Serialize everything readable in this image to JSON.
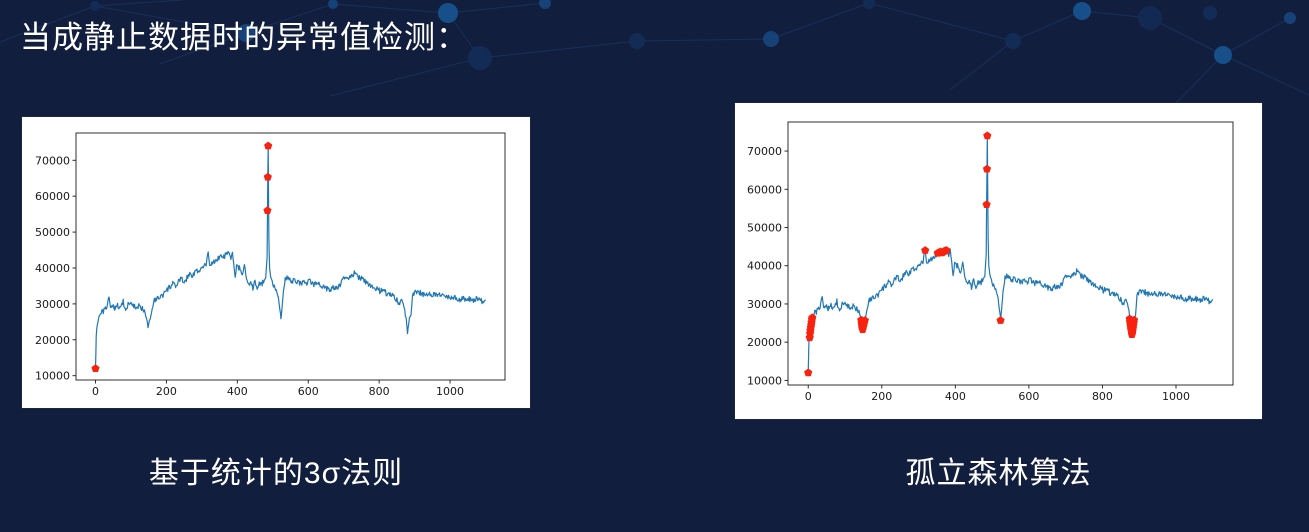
{
  "page": {
    "title": "当成静止数据时的异常值检测：",
    "background_color": "#121e3e",
    "text_color": "#ffffff"
  },
  "chart_data": {
    "type": "line",
    "x_ticks": [
      0,
      200,
      400,
      600,
      800,
      1000
    ],
    "y_ticks": [
      10000,
      20000,
      30000,
      40000,
      50000,
      60000,
      70000
    ],
    "xlim": [
      -55,
      1155
    ],
    "ylim": [
      8800,
      77600
    ],
    "panel_background": "#ffffff",
    "line_color": "#1f77b4",
    "anomaly_color": "#f8220e",
    "anomaly_marker": "pentagon",
    "axis_color": "#1a1a1a",
    "noise_amplitude": 1500,
    "series_keypoints": [
      [
        0,
        12000
      ],
      [
        1,
        16500
      ],
      [
        2,
        21000
      ],
      [
        4,
        23500
      ],
      [
        6,
        24500
      ],
      [
        8,
        25500
      ],
      [
        10,
        26500
      ],
      [
        14,
        27200
      ],
      [
        20,
        27800
      ],
      [
        26,
        28300
      ],
      [
        32,
        29000
      ],
      [
        38,
        32300
      ],
      [
        42,
        28800
      ],
      [
        48,
        29300
      ],
      [
        55,
        28800
      ],
      [
        62,
        29500
      ],
      [
        70,
        29000
      ],
      [
        78,
        30600
      ],
      [
        85,
        28000
      ],
      [
        92,
        29800
      ],
      [
        100,
        30300
      ],
      [
        108,
        29600
      ],
      [
        115,
        28200
      ],
      [
        122,
        29300
      ],
      [
        130,
        28800
      ],
      [
        138,
        28300
      ],
      [
        144,
        26500
      ],
      [
        148,
        23600
      ],
      [
        152,
        25500
      ],
      [
        158,
        27500
      ],
      [
        164,
        30800
      ],
      [
        172,
        31400
      ],
      [
        180,
        31800
      ],
      [
        190,
        32500
      ],
      [
        200,
        33600
      ],
      [
        210,
        34800
      ],
      [
        218,
        35600
      ],
      [
        226,
        34700
      ],
      [
        234,
        36300
      ],
      [
        242,
        36900
      ],
      [
        250,
        36200
      ],
      [
        258,
        37200
      ],
      [
        266,
        38600
      ],
      [
        274,
        37800
      ],
      [
        282,
        39400
      ],
      [
        290,
        38800
      ],
      [
        298,
        39800
      ],
      [
        306,
        40300
      ],
      [
        312,
        41000
      ],
      [
        318,
        44000
      ],
      [
        322,
        40800
      ],
      [
        328,
        41300
      ],
      [
        336,
        41900
      ],
      [
        344,
        42300
      ],
      [
        352,
        43400
      ],
      [
        360,
        43100
      ],
      [
        368,
        43600
      ],
      [
        376,
        44000
      ],
      [
        382,
        42600
      ],
      [
        386,
        43900
      ],
      [
        390,
        41200
      ],
      [
        394,
        36700
      ],
      [
        398,
        40600
      ],
      [
        404,
        40100
      ],
      [
        410,
        39400
      ],
      [
        416,
        38000
      ],
      [
        420,
        41600
      ],
      [
        426,
        36400
      ],
      [
        432,
        35200
      ],
      [
        438,
        35800
      ],
      [
        444,
        34300
      ],
      [
        450,
        36400
      ],
      [
        456,
        34200
      ],
      [
        462,
        35900
      ],
      [
        468,
        35400
      ],
      [
        474,
        36300
      ],
      [
        480,
        37200
      ],
      [
        484,
        43000
      ],
      [
        485,
        56000
      ],
      [
        486,
        65300
      ],
      [
        487,
        74000
      ],
      [
        489,
        48000
      ],
      [
        491,
        40000
      ],
      [
        494,
        37600
      ],
      [
        498,
        36200
      ],
      [
        504,
        34600
      ],
      [
        510,
        33400
      ],
      [
        516,
        31200
      ],
      [
        520,
        28400
      ],
      [
        523,
        25700
      ],
      [
        526,
        28800
      ],
      [
        530,
        33500
      ],
      [
        535,
        36600
      ],
      [
        540,
        37600
      ],
      [
        546,
        36700
      ],
      [
        554,
        36100
      ],
      [
        562,
        36600
      ],
      [
        570,
        36200
      ],
      [
        578,
        35700
      ],
      [
        586,
        36200
      ],
      [
        594,
        35800
      ],
      [
        602,
        36300
      ],
      [
        612,
        35700
      ],
      [
        622,
        35300
      ],
      [
        632,
        35600
      ],
      [
        642,
        34900
      ],
      [
        652,
        34300
      ],
      [
        662,
        33900
      ],
      [
        672,
        34600
      ],
      [
        682,
        34200
      ],
      [
        690,
        35400
      ],
      [
        698,
        36700
      ],
      [
        706,
        37300
      ],
      [
        714,
        37100
      ],
      [
        722,
        37800
      ],
      [
        730,
        38600
      ],
      [
        738,
        37600
      ],
      [
        746,
        37200
      ],
      [
        754,
        36700
      ],
      [
        762,
        36100
      ],
      [
        770,
        35600
      ],
      [
        778,
        35100
      ],
      [
        786,
        34700
      ],
      [
        794,
        34300
      ],
      [
        802,
        33600
      ],
      [
        810,
        34100
      ],
      [
        818,
        33200
      ],
      [
        826,
        32300
      ],
      [
        834,
        32700
      ],
      [
        842,
        31800
      ],
      [
        850,
        31300
      ],
      [
        856,
        29600
      ],
      [
        862,
        31100
      ],
      [
        868,
        29900
      ],
      [
        872,
        28100
      ],
      [
        876,
        26200
      ],
      [
        880,
        22000
      ],
      [
        883,
        24300
      ],
      [
        886,
        25600
      ],
      [
        890,
        27000
      ],
      [
        894,
        32400
      ],
      [
        900,
        33200
      ],
      [
        908,
        33600
      ],
      [
        916,
        33100
      ],
      [
        924,
        32700
      ],
      [
        932,
        33100
      ],
      [
        940,
        32800
      ],
      [
        948,
        32400
      ],
      [
        956,
        32800
      ],
      [
        964,
        32300
      ],
      [
        972,
        32600
      ],
      [
        980,
        32100
      ],
      [
        988,
        31700
      ],
      [
        996,
        32200
      ],
      [
        1004,
        31700
      ],
      [
        1012,
        32100
      ],
      [
        1020,
        31600
      ],
      [
        1028,
        31200
      ],
      [
        1036,
        31600
      ],
      [
        1044,
        31100
      ],
      [
        1052,
        31500
      ],
      [
        1060,
        31000
      ],
      [
        1068,
        30700
      ],
      [
        1076,
        31600
      ],
      [
        1084,
        31100
      ],
      [
        1092,
        30700
      ],
      [
        1100,
        30600
      ]
    ],
    "charts": [
      {
        "id": "sigma-rule",
        "caption": "基于统计的3σ法则",
        "anomalies": [
          [
            0,
            12000
          ],
          [
            485,
            56000
          ],
          [
            486,
            65300
          ],
          [
            487,
            74000
          ]
        ]
      },
      {
        "id": "isolation-forest",
        "caption": "孤立森林算法",
        "anomalies": [
          [
            0,
            12000
          ],
          [
            4,
            21200
          ],
          [
            5,
            22300
          ],
          [
            6,
            23100
          ],
          [
            7,
            23800
          ],
          [
            8,
            24500
          ],
          [
            9,
            25200
          ],
          [
            10,
            25900
          ],
          [
            11,
            26400
          ],
          [
            144,
            25800
          ],
          [
            145,
            25000
          ],
          [
            146,
            24200
          ],
          [
            147,
            23600
          ],
          [
            148,
            23300
          ],
          [
            150,
            24100
          ],
          [
            152,
            24900
          ],
          [
            154,
            25700
          ],
          [
            318,
            44000
          ],
          [
            352,
            43300
          ],
          [
            356,
            43500
          ],
          [
            360,
            43650
          ],
          [
            364,
            43400
          ],
          [
            368,
            43700
          ],
          [
            372,
            43900
          ],
          [
            376,
            44000
          ],
          [
            485,
            56000
          ],
          [
            486,
            65300
          ],
          [
            487,
            74000
          ],
          [
            523,
            25700
          ],
          [
            874,
            26100
          ],
          [
            875,
            25300
          ],
          [
            876,
            24600
          ],
          [
            877,
            23900
          ],
          [
            878,
            23300
          ],
          [
            879,
            22700
          ],
          [
            880,
            22000
          ],
          [
            881,
            22400
          ],
          [
            882,
            23000
          ],
          [
            883,
            23700
          ],
          [
            884,
            24400
          ],
          [
            885,
            25100
          ],
          [
            886,
            25800
          ]
        ]
      }
    ]
  }
}
